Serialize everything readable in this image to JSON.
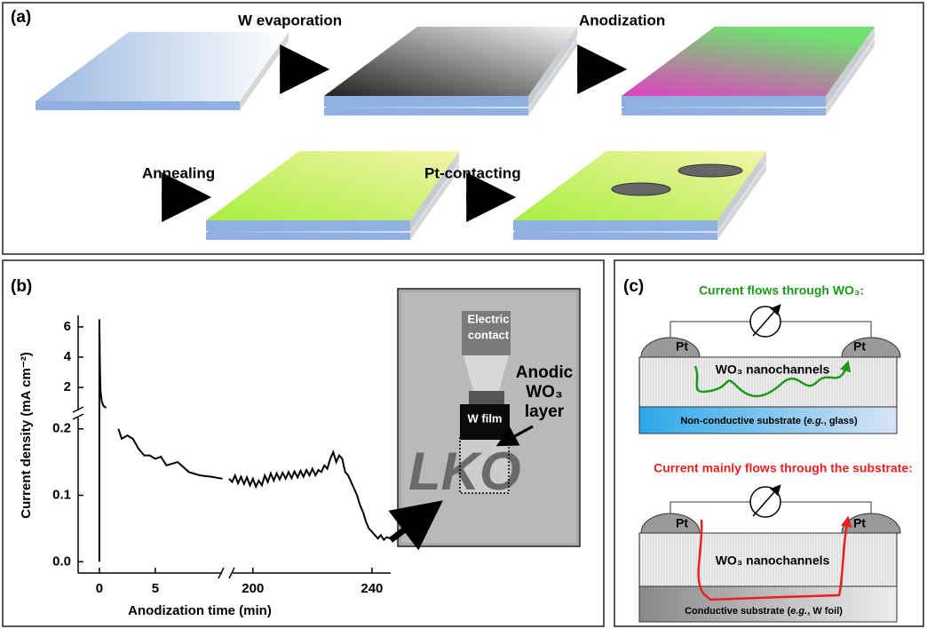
{
  "panel_a": {
    "label": "(a)",
    "steps": [
      "W evaporation",
      "Anodization",
      "Annealing",
      "Pt-contacting"
    ]
  },
  "chart_data": {
    "type": "line",
    "label": "(b)",
    "x_label": "Anodization time (min)",
    "y_label": "Current density (mA cm⁻²)",
    "xlim_left": [
      -1.9,
      11.2
    ],
    "xticks_left": [
      0,
      5
    ],
    "xlim_right": [
      192,
      246.3
    ],
    "xticks_right": [
      200,
      240
    ],
    "ylim_low": [
      -0.017,
      0.217
    ],
    "yticks_low": [
      {
        "value": 0,
        "label": "0.0"
      },
      0.1,
      0.2
    ],
    "ylim_high": [
      0.6,
      6.76
    ],
    "yticks_high": [
      2,
      4,
      6
    ],
    "series": [
      {
        "color": "#000000",
        "x": [
          0,
          0,
          0.05,
          0.1,
          0.2,
          0.35,
          0.6
        ],
        "values": [
          0,
          6.5,
          3.2,
          1.8,
          1.1,
          0.8,
          0.65
        ]
      },
      {
        "color": "#000000",
        "x": [
          1.7,
          2,
          2.5,
          3,
          3.5,
          4,
          4.5,
          5,
          5.5,
          6,
          7,
          8,
          9,
          10,
          11
        ],
        "values": [
          0.2,
          0.185,
          0.19,
          0.185,
          0.17,
          0.16,
          0.16,
          0.155,
          0.158,
          0.145,
          0.15,
          0.135,
          0.13,
          0.128,
          0.125
        ]
      },
      {
        "color": "#000000",
        "x": [
          192,
          193,
          194,
          195,
          196,
          197,
          198,
          199,
          200,
          201,
          202,
          203,
          204,
          205,
          206,
          207,
          208,
          209,
          210,
          211,
          212,
          213,
          214,
          215,
          216,
          217,
          218,
          219,
          220,
          221,
          222,
          223,
          224,
          225,
          226,
          227,
          228,
          229,
          230,
          231,
          232,
          233,
          234,
          235,
          236,
          237,
          238,
          239,
          240,
          241,
          242,
          243,
          244,
          245,
          246
        ],
        "values": [
          0.125,
          0.12,
          0.13,
          0.118,
          0.128,
          0.117,
          0.127,
          0.115,
          0.125,
          0.113,
          0.122,
          0.115,
          0.13,
          0.12,
          0.133,
          0.122,
          0.133,
          0.124,
          0.134,
          0.125,
          0.135,
          0.126,
          0.136,
          0.127,
          0.137,
          0.128,
          0.138,
          0.13,
          0.14,
          0.13,
          0.138,
          0.135,
          0.145,
          0.14,
          0.155,
          0.165,
          0.15,
          0.16,
          0.155,
          0.135,
          0.13,
          0.12,
          0.11,
          0.1,
          0.085,
          0.075,
          0.06,
          0.05,
          0.045,
          0.04,
          0.035,
          0.04,
          0.033,
          0.037,
          0.035
        ]
      }
    ]
  },
  "photo": {
    "contact": [
      "Electric",
      "contact"
    ],
    "film": "W film",
    "layer": [
      "Anodic",
      "WO₃",
      "layer"
    ]
  },
  "panel_c": {
    "label": "(c)",
    "top_title": "Current flows through WO₃:",
    "bottom_title": "Current mainly flows through the substrate:",
    "pt": "Pt",
    "channels": "WO₃ nanochannels",
    "top_substrate": [
      "Non-conductive substrate (",
      "e.g.",
      ", glass)"
    ],
    "bottom_substrate": [
      "Conductive substrate (",
      "e.g.",
      ", W foil)"
    ]
  }
}
